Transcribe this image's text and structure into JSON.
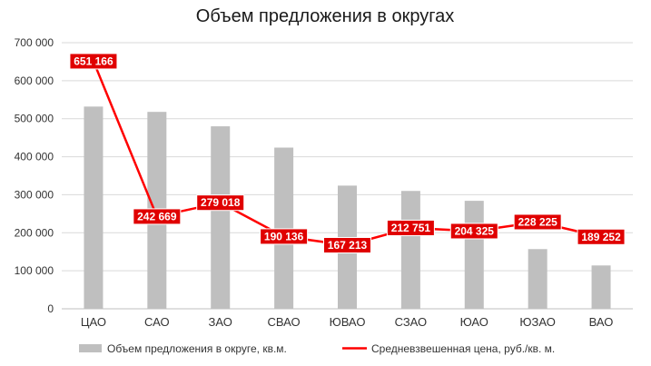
{
  "chart_data": {
    "type": "bar+line",
    "title": "Объем предложения в округах",
    "categories": [
      "ЦАО",
      "САО",
      "ЗАО",
      "СВАО",
      "ЮВАО",
      "СЗАО",
      "ЮАО",
      "ЮЗАО",
      "ВАО"
    ],
    "y_ticks": [
      "0",
      "100 000",
      "200 000",
      "300 000",
      "400 000",
      "500 000",
      "600 000",
      "700 000"
    ],
    "ylim": [
      0,
      700000
    ],
    "grid": true,
    "legend_position": "bottom",
    "series": [
      {
        "name": "Объем предложения в округе, кв.м.",
        "type": "bar",
        "color": "#bfbfbf",
        "values": [
          532000,
          518000,
          480000,
          424000,
          324000,
          310000,
          284000,
          157000,
          114000
        ]
      },
      {
        "name": "Средневзвешенная цена, руб./кв. м.",
        "type": "line",
        "color": "#ff0000",
        "values": [
          651166,
          242669,
          279018,
          190136,
          167213,
          212751,
          204325,
          228225,
          189252
        ],
        "data_labels": [
          "651 166",
          "242 669",
          "279 018",
          "190 136",
          "167 213",
          "212 751",
          "204 325",
          "228 225",
          "189 252"
        ],
        "label_bg": "#e00000"
      }
    ]
  }
}
